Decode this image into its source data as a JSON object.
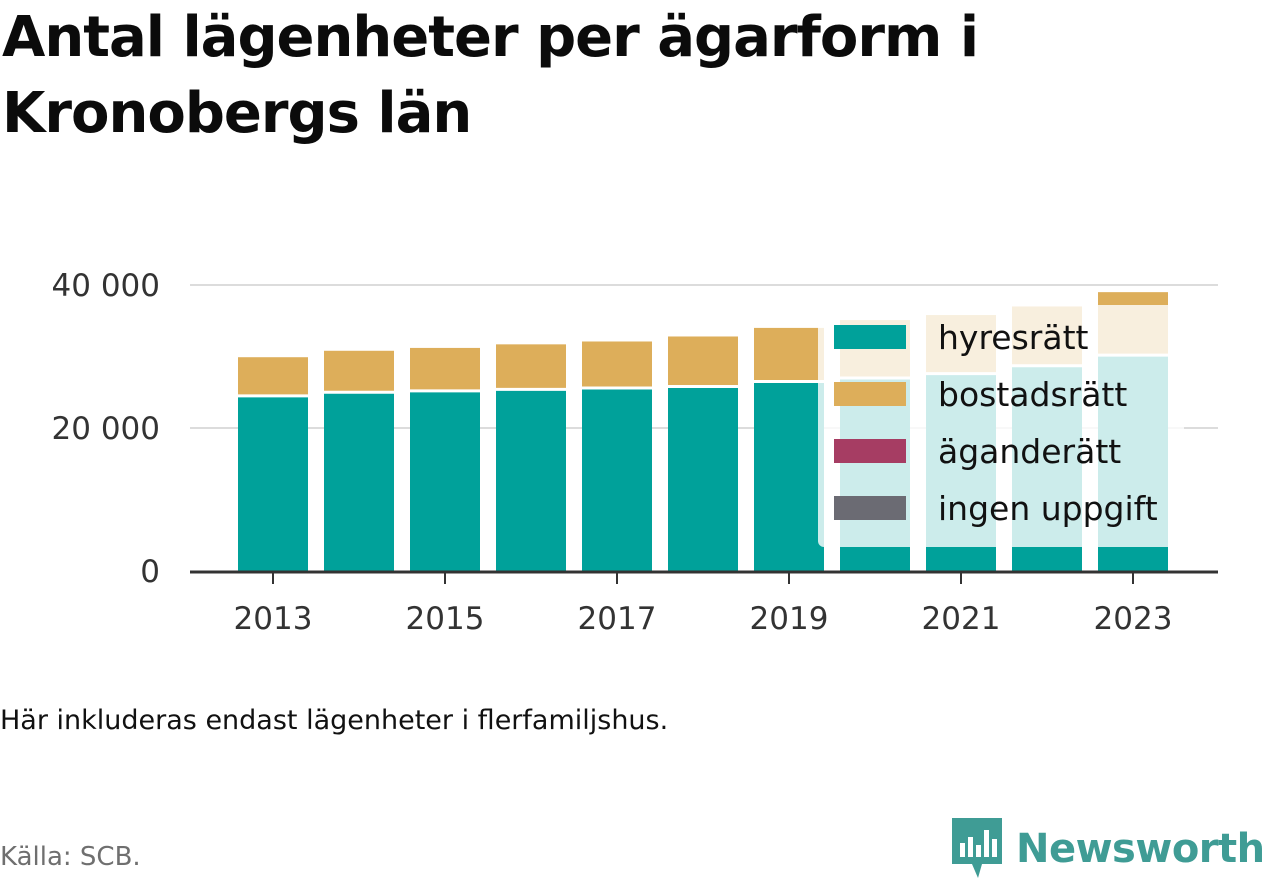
{
  "title": "Antal lägenheter per ägarform i Kronobergs län",
  "note": "Här inkluderas endast lägenheter i flerfamiljshus.",
  "source": "Källa: SCB.",
  "brand": {
    "name": "Newsworthy",
    "color": "#3f9c95"
  },
  "chart_data": {
    "type": "bar",
    "stacked": true,
    "categories": [
      "2013",
      "2014",
      "2015",
      "2016",
      "2017",
      "2018",
      "2019",
      "2020",
      "2021",
      "2022",
      "2023"
    ],
    "x_tick_labels": [
      "2013",
      "2015",
      "2017",
      "2019",
      "2021",
      "2023"
    ],
    "y_ticks": [
      0,
      20000,
      40000
    ],
    "y_tick_labels": [
      "0",
      "20 000",
      "40 000"
    ],
    "ylim": [
      0,
      40000
    ],
    "grid": true,
    "legend_position": "right (overlapping last bars)",
    "series": [
      {
        "name": "hyresrätt",
        "color": "#00a19a",
        "values": [
          24500,
          25000,
          25200,
          25400,
          25600,
          25800,
          26500,
          27000,
          27600,
          28700,
          30200
        ]
      },
      {
        "name": "bostadsrätt",
        "color": "#ddae5a",
        "values": [
          5400,
          5800,
          6000,
          6300,
          6500,
          7000,
          7500,
          8100,
          8200,
          8300,
          8800
        ]
      },
      {
        "name": "äganderätt",
        "color": "#a63d63",
        "values": [
          0,
          0,
          0,
          0,
          0,
          0,
          0,
          0,
          0,
          0,
          0
        ]
      },
      {
        "name": "ingen uppgift",
        "color": "#6b6b73",
        "values": [
          0,
          0,
          0,
          0,
          0,
          0,
          0,
          0,
          0,
          0,
          0
        ]
      }
    ]
  }
}
